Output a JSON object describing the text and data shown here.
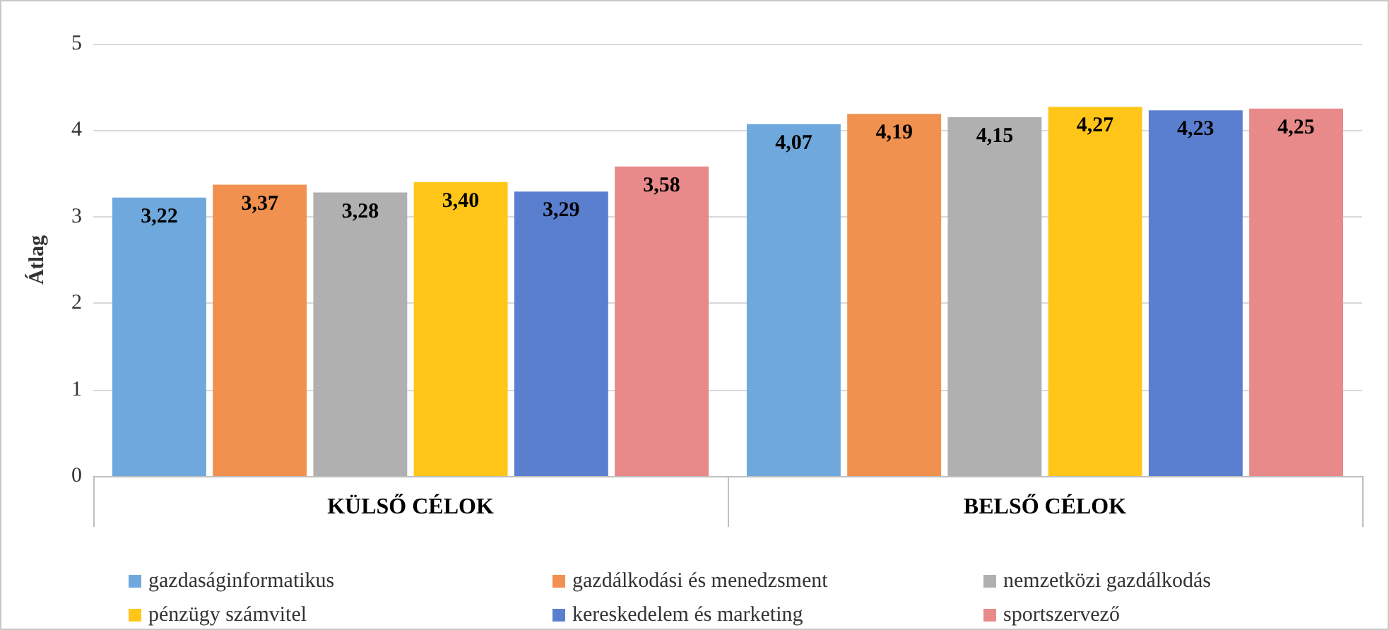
{
  "chart_data": {
    "type": "bar",
    "ylabel": "Átlag",
    "categories": [
      "KÜLSŐ CÉLOK",
      "BELSŐ CÉLOK"
    ],
    "series": [
      {
        "name": "gazdaságinformatikus",
        "color": "#6fa8dc",
        "values": [
          3.22,
          4.07
        ]
      },
      {
        "name": "gazdálkodási és menedzsment",
        "color": "#f0914f",
        "values": [
          3.37,
          4.19
        ]
      },
      {
        "name": "nemzetközi gazdálkodás",
        "color": "#b0b0b0",
        "values": [
          3.28,
          4.15
        ]
      },
      {
        "name": "pénzügy számvitel",
        "color": "#ffc619",
        "values": [
          3.4,
          4.27
        ]
      },
      {
        "name": "kereskedelem és marketing",
        "color": "#5b7fcf",
        "values": [
          3.29,
          4.23
        ]
      },
      {
        "name": "sportszervező",
        "color": "#e88a8a",
        "values": [
          3.58,
          4.25
        ]
      }
    ],
    "value_labels": [
      [
        "3,22",
        "4,07"
      ],
      [
        "3,37",
        "4,19"
      ],
      [
        "3,28",
        "4,15"
      ],
      [
        "3,40",
        "4,27"
      ],
      [
        "3,29",
        "4,23"
      ],
      [
        "3,58",
        "4,25"
      ]
    ],
    "ylim": [
      0,
      5
    ],
    "yticks": [
      0,
      1,
      2,
      3,
      4,
      5
    ],
    "grid": "y",
    "legend": "bottom"
  }
}
